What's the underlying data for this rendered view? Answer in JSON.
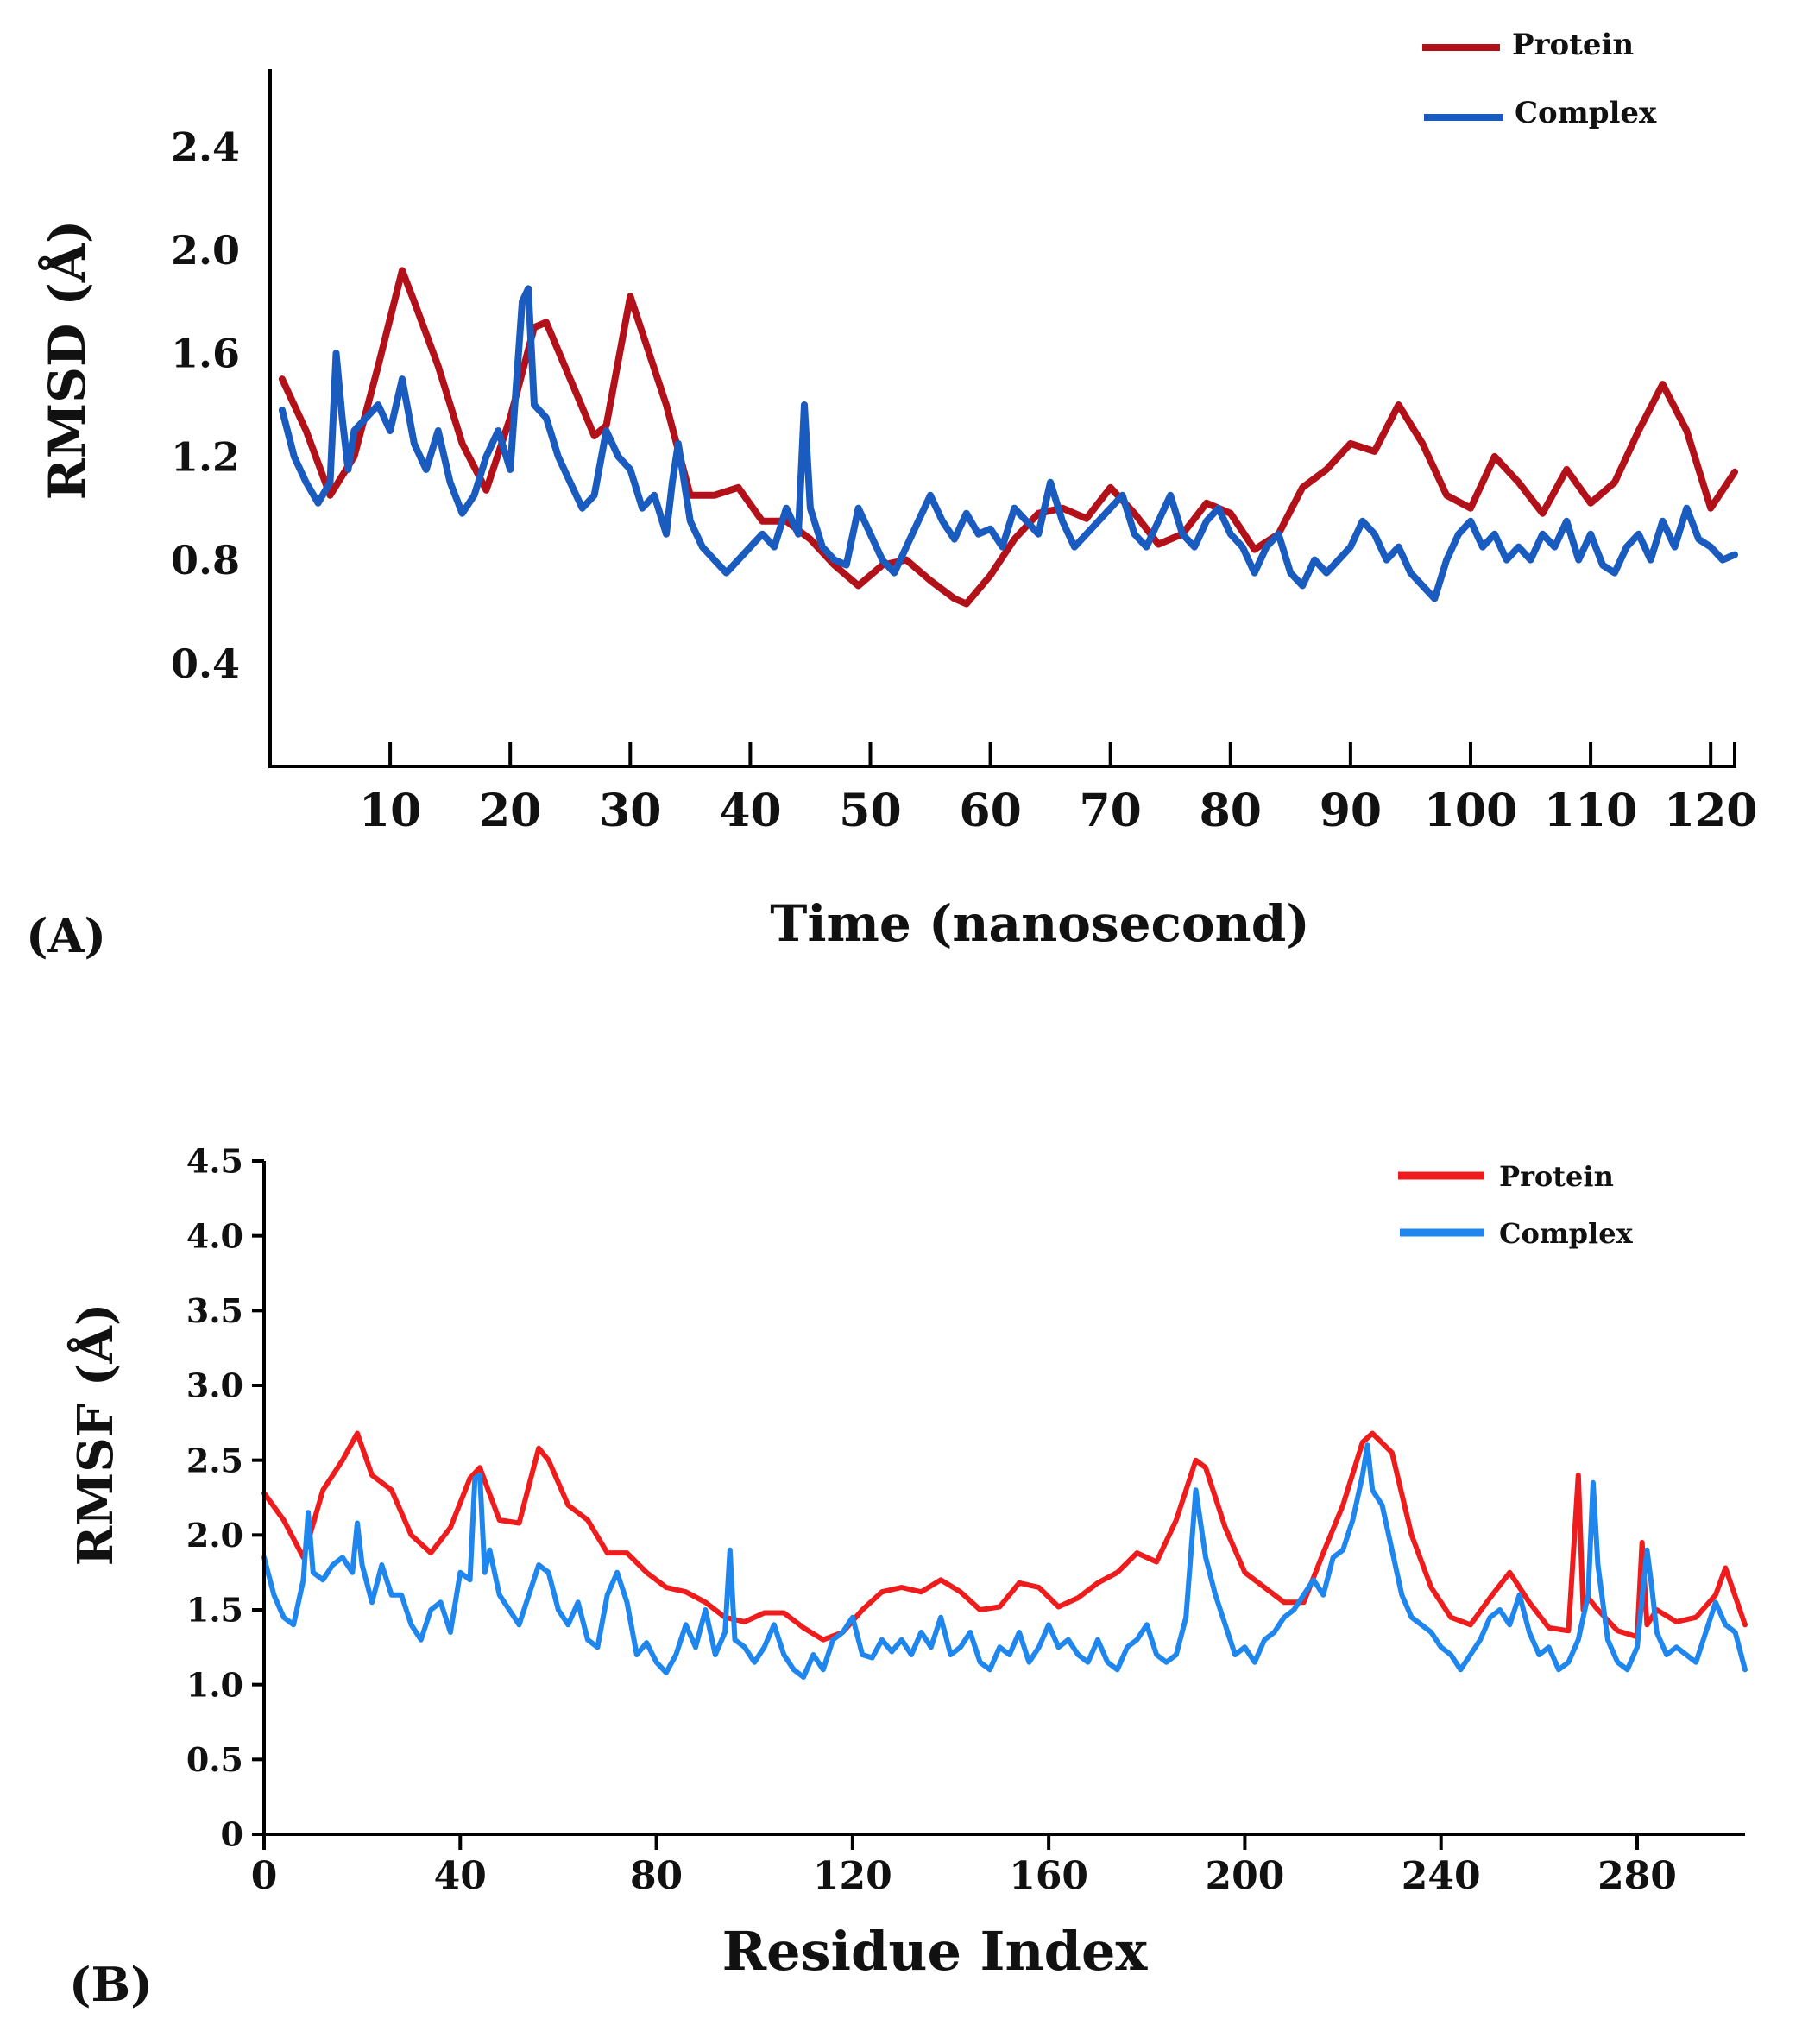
{
  "chart_data": [
    {
      "panel_label": "(A)",
      "type": "line",
      "title": "",
      "xlabel": "Time (nanosecond)",
      "ylabel": "RMSD (Å)",
      "xlim": [
        0,
        122
      ],
      "ylim": [
        0.0,
        2.7
      ],
      "x_ticks": [
        10,
        20,
        30,
        40,
        50,
        60,
        70,
        80,
        90,
        100,
        110,
        120
      ],
      "y_ticks": [
        0.4,
        0.8,
        1.2,
        1.6,
        2.0,
        2.4
      ],
      "y_tick_labels": [
        "0.4",
        "0.8",
        "1.2",
        "1.6",
        "2.0",
        "2.4"
      ],
      "grid": false,
      "legend_position": "top-right",
      "series": [
        {
          "name": "Protein",
          "color": "#b3111a",
          "x": [
            1,
            3,
            5,
            7,
            9,
            11,
            12,
            14,
            16,
            18,
            20,
            22,
            23,
            25,
            27,
            28,
            30,
            31,
            33,
            35,
            37,
            39,
            41,
            43,
            45,
            47,
            49,
            51,
            53,
            55,
            57,
            58,
            60,
            62,
            64,
            66,
            68,
            70,
            72,
            74,
            76,
            78,
            80,
            82,
            84,
            86,
            88,
            90,
            92,
            94,
            96,
            98,
            100,
            102,
            104,
            106,
            108,
            110,
            112,
            114,
            116,
            118,
            120,
            122
          ],
          "values": [
            1.5,
            1.3,
            1.05,
            1.2,
            1.55,
            1.92,
            1.8,
            1.55,
            1.25,
            1.07,
            1.35,
            1.7,
            1.72,
            1.5,
            1.28,
            1.32,
            1.82,
            1.68,
            1.4,
            1.05,
            1.05,
            1.08,
            0.95,
            0.95,
            0.88,
            0.78,
            0.7,
            0.78,
            0.8,
            0.72,
            0.65,
            0.63,
            0.74,
            0.88,
            0.98,
            1.0,
            0.96,
            1.08,
            0.98,
            0.86,
            0.9,
            1.02,
            0.98,
            0.84,
            0.9,
            1.08,
            1.15,
            1.25,
            1.22,
            1.4,
            1.25,
            1.05,
            1.0,
            1.2,
            1.1,
            0.98,
            1.15,
            1.02,
            1.1,
            1.3,
            1.48,
            1.3,
            1.0,
            1.14
          ]
        },
        {
          "name": "Complex",
          "color": "#1a5bbf",
          "x": [
            1,
            2,
            3,
            4,
            5,
            5.5,
            6,
            6.5,
            7,
            8,
            9,
            10,
            11,
            12,
            13,
            14,
            15,
            16,
            17,
            18,
            19,
            20,
            21,
            21.5,
            22,
            23,
            24,
            25,
            26,
            27,
            28,
            29,
            30,
            31,
            32,
            33,
            33.5,
            34,
            35,
            36,
            37,
            38,
            39,
            40,
            41,
            42,
            43,
            44,
            44.5,
            45,
            46,
            47,
            48,
            49,
            50,
            51,
            52,
            53,
            54,
            55,
            56,
            57,
            58,
            59,
            60,
            61,
            62,
            63,
            64,
            65,
            66,
            67,
            68,
            69,
            70,
            71,
            72,
            73,
            74,
            75,
            76,
            77,
            78,
            79,
            80,
            81,
            82,
            83,
            84,
            85,
            86,
            87,
            88,
            89,
            90,
            91,
            92,
            93,
            94,
            95,
            96,
            97,
            98,
            99,
            100,
            101,
            102,
            103,
            104,
            105,
            106,
            107,
            108,
            109,
            110,
            111,
            112,
            113,
            114,
            115,
            116,
            117,
            118,
            119,
            120,
            121,
            122
          ],
          "values": [
            1.38,
            1.2,
            1.1,
            1.02,
            1.1,
            1.6,
            1.35,
            1.15,
            1.3,
            1.35,
            1.4,
            1.3,
            1.5,
            1.25,
            1.15,
            1.3,
            1.1,
            0.98,
            1.05,
            1.2,
            1.3,
            1.15,
            1.8,
            1.85,
            1.4,
            1.35,
            1.2,
            1.1,
            1.0,
            1.05,
            1.3,
            1.2,
            1.15,
            1.0,
            1.05,
            0.9,
            1.1,
            1.25,
            0.95,
            0.85,
            0.8,
            0.75,
            0.8,
            0.85,
            0.9,
            0.85,
            1.0,
            0.9,
            1.4,
            1.0,
            0.85,
            0.8,
            0.78,
            1.0,
            0.9,
            0.8,
            0.75,
            0.85,
            0.95,
            1.05,
            0.95,
            0.88,
            0.98,
            0.9,
            0.92,
            0.85,
            1.0,
            0.95,
            0.9,
            1.1,
            0.95,
            0.85,
            0.9,
            0.95,
            1.0,
            1.05,
            0.9,
            0.85,
            0.95,
            1.05,
            0.9,
            0.85,
            0.95,
            1.0,
            0.9,
            0.85,
            0.75,
            0.85,
            0.9,
            0.75,
            0.7,
            0.8,
            0.75,
            0.8,
            0.85,
            0.95,
            0.9,
            0.8,
            0.85,
            0.75,
            0.7,
            0.65,
            0.8,
            0.9,
            0.95,
            0.85,
            0.9,
            0.8,
            0.85,
            0.8,
            0.9,
            0.85,
            0.95,
            0.8,
            0.9,
            0.78,
            0.75,
            0.85,
            0.9,
            0.8,
            0.95,
            0.85,
            1.0,
            0.88,
            0.85,
            0.8,
            0.82
          ]
        }
      ]
    },
    {
      "panel_label": "(B)",
      "type": "line",
      "title": "",
      "xlabel": "Residue Index",
      "ylabel": "RMSF (Å)",
      "xlim": [
        0,
        302
      ],
      "ylim": [
        0,
        4.5
      ],
      "x_ticks": [
        0,
        40,
        80,
        120,
        160,
        200,
        240,
        280
      ],
      "y_ticks": [
        0,
        0.5,
        1.0,
        1.5,
        2.0,
        2.5,
        3.0,
        3.5,
        4.0,
        4.5
      ],
      "y_tick_labels": [
        "0",
        "0.5",
        "1.0",
        "1.5",
        "2.0",
        "2.5",
        "3.0",
        "3.5",
        "4.0",
        "4.5"
      ],
      "grid": false,
      "legend_position": "top-right",
      "series": [
        {
          "name": "Protein",
          "color": "#ee1c1c",
          "x": [
            0,
            4,
            8,
            12,
            16,
            19,
            22,
            26,
            30,
            34,
            38,
            42,
            44,
            48,
            52,
            56,
            58,
            62,
            66,
            70,
            74,
            78,
            82,
            86,
            90,
            94,
            98,
            102,
            106,
            110,
            114,
            118,
            122,
            126,
            130,
            134,
            138,
            142,
            146,
            150,
            154,
            158,
            162,
            166,
            170,
            174,
            178,
            182,
            186,
            190,
            192,
            196,
            200,
            204,
            208,
            212,
            216,
            220,
            224,
            226,
            230,
            234,
            238,
            242,
            246,
            250,
            254,
            258,
            262,
            266,
            268,
            269,
            270,
            272,
            276,
            280,
            281,
            282,
            284,
            288,
            292,
            296,
            298,
            302
          ],
          "values": [
            2.28,
            2.1,
            1.85,
            2.3,
            2.5,
            2.68,
            2.4,
            2.3,
            2.0,
            1.88,
            2.05,
            2.38,
            2.45,
            2.1,
            2.08,
            2.58,
            2.5,
            2.2,
            2.1,
            1.88,
            1.88,
            1.75,
            1.65,
            1.62,
            1.55,
            1.45,
            1.42,
            1.48,
            1.48,
            1.38,
            1.3,
            1.35,
            1.5,
            1.62,
            1.65,
            1.62,
            1.7,
            1.62,
            1.5,
            1.52,
            1.68,
            1.65,
            1.52,
            1.58,
            1.68,
            1.75,
            1.88,
            1.82,
            2.1,
            2.5,
            2.45,
            2.05,
            1.75,
            1.65,
            1.55,
            1.55,
            1.88,
            2.2,
            2.62,
            2.68,
            2.55,
            2.0,
            1.65,
            1.45,
            1.4,
            1.58,
            1.75,
            1.55,
            1.38,
            1.36,
            2.4,
            1.5,
            1.58,
            1.5,
            1.36,
            1.32,
            1.95,
            1.4,
            1.5,
            1.42,
            1.45,
            1.6,
            1.78,
            1.4
          ]
        },
        {
          "name": "Complex",
          "color": "#1f86ee",
          "x": [
            0,
            2,
            4,
            6,
            8,
            9,
            10,
            12,
            14,
            16,
            18,
            19,
            20,
            22,
            24,
            26,
            28,
            30,
            32,
            34,
            36,
            38,
            40,
            42,
            43,
            44,
            45,
            46,
            48,
            50,
            52,
            54,
            56,
            58,
            60,
            62,
            64,
            66,
            68,
            70,
            72,
            74,
            76,
            78,
            80,
            82,
            84,
            86,
            88,
            90,
            92,
            94,
            95,
            96,
            98,
            100,
            102,
            104,
            106,
            108,
            110,
            112,
            114,
            116,
            118,
            120,
            122,
            124,
            126,
            128,
            130,
            132,
            134,
            136,
            138,
            140,
            142,
            144,
            146,
            148,
            150,
            152,
            154,
            156,
            158,
            160,
            162,
            164,
            166,
            168,
            170,
            172,
            174,
            176,
            178,
            180,
            182,
            184,
            186,
            188,
            190,
            192,
            194,
            196,
            198,
            200,
            202,
            204,
            206,
            208,
            210,
            212,
            214,
            216,
            218,
            220,
            222,
            224,
            225,
            226,
            228,
            230,
            232,
            234,
            236,
            238,
            240,
            242,
            244,
            246,
            248,
            250,
            252,
            254,
            256,
            258,
            260,
            262,
            264,
            266,
            268,
            270,
            271,
            272,
            274,
            276,
            278,
            280,
            282,
            283,
            284,
            286,
            288,
            290,
            292,
            294,
            296,
            298,
            300,
            302
          ],
          "values": [
            1.85,
            1.6,
            1.45,
            1.4,
            1.7,
            2.15,
            1.75,
            1.7,
            1.8,
            1.85,
            1.75,
            2.08,
            1.8,
            1.55,
            1.8,
            1.6,
            1.6,
            1.4,
            1.3,
            1.5,
            1.55,
            1.35,
            1.75,
            1.7,
            2.38,
            2.4,
            1.75,
            1.9,
            1.6,
            1.5,
            1.4,
            1.6,
            1.8,
            1.75,
            1.5,
            1.4,
            1.55,
            1.3,
            1.25,
            1.6,
            1.75,
            1.55,
            1.2,
            1.28,
            1.15,
            1.08,
            1.2,
            1.4,
            1.25,
            1.5,
            1.2,
            1.35,
            1.9,
            1.3,
            1.25,
            1.15,
            1.25,
            1.4,
            1.2,
            1.1,
            1.05,
            1.2,
            1.1,
            1.3,
            1.35,
            1.45,
            1.2,
            1.18,
            1.3,
            1.22,
            1.3,
            1.2,
            1.35,
            1.25,
            1.45,
            1.2,
            1.25,
            1.35,
            1.15,
            1.1,
            1.25,
            1.2,
            1.35,
            1.15,
            1.25,
            1.4,
            1.25,
            1.3,
            1.2,
            1.15,
            1.3,
            1.15,
            1.1,
            1.25,
            1.3,
            1.4,
            1.2,
            1.15,
            1.2,
            1.45,
            2.3,
            1.85,
            1.6,
            1.4,
            1.2,
            1.25,
            1.15,
            1.3,
            1.35,
            1.45,
            1.5,
            1.6,
            1.7,
            1.6,
            1.85,
            1.9,
            2.1,
            2.4,
            2.6,
            2.3,
            2.2,
            1.9,
            1.6,
            1.45,
            1.4,
            1.35,
            1.25,
            1.2,
            1.1,
            1.2,
            1.3,
            1.45,
            1.5,
            1.4,
            1.6,
            1.35,
            1.2,
            1.25,
            1.1,
            1.15,
            1.3,
            1.6,
            2.35,
            1.8,
            1.3,
            1.15,
            1.1,
            1.25,
            1.9,
            1.65,
            1.35,
            1.2,
            1.25,
            1.2,
            1.15,
            1.35,
            1.55,
            1.4,
            1.35,
            1.1
          ]
        }
      ]
    }
  ]
}
